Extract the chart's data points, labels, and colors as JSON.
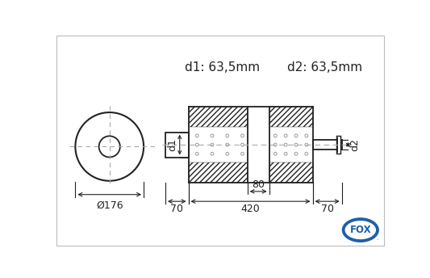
{
  "bg_color": "#ffffff",
  "line_color": "#222222",
  "fox_blue": "#1e5fa8",
  "d1_label": "d1: 63,5mm",
  "d2_label": "d2: 63,5mm",
  "dia_label": "Ø176",
  "d1_side_label": "d1",
  "d2_side_label": "d2",
  "dim_420": "420",
  "dim_80": "80",
  "dim_70_left": "70",
  "dim_70_right": "70",
  "dot_color": "#999999",
  "font_size_labels": 11,
  "font_size_dims": 9
}
